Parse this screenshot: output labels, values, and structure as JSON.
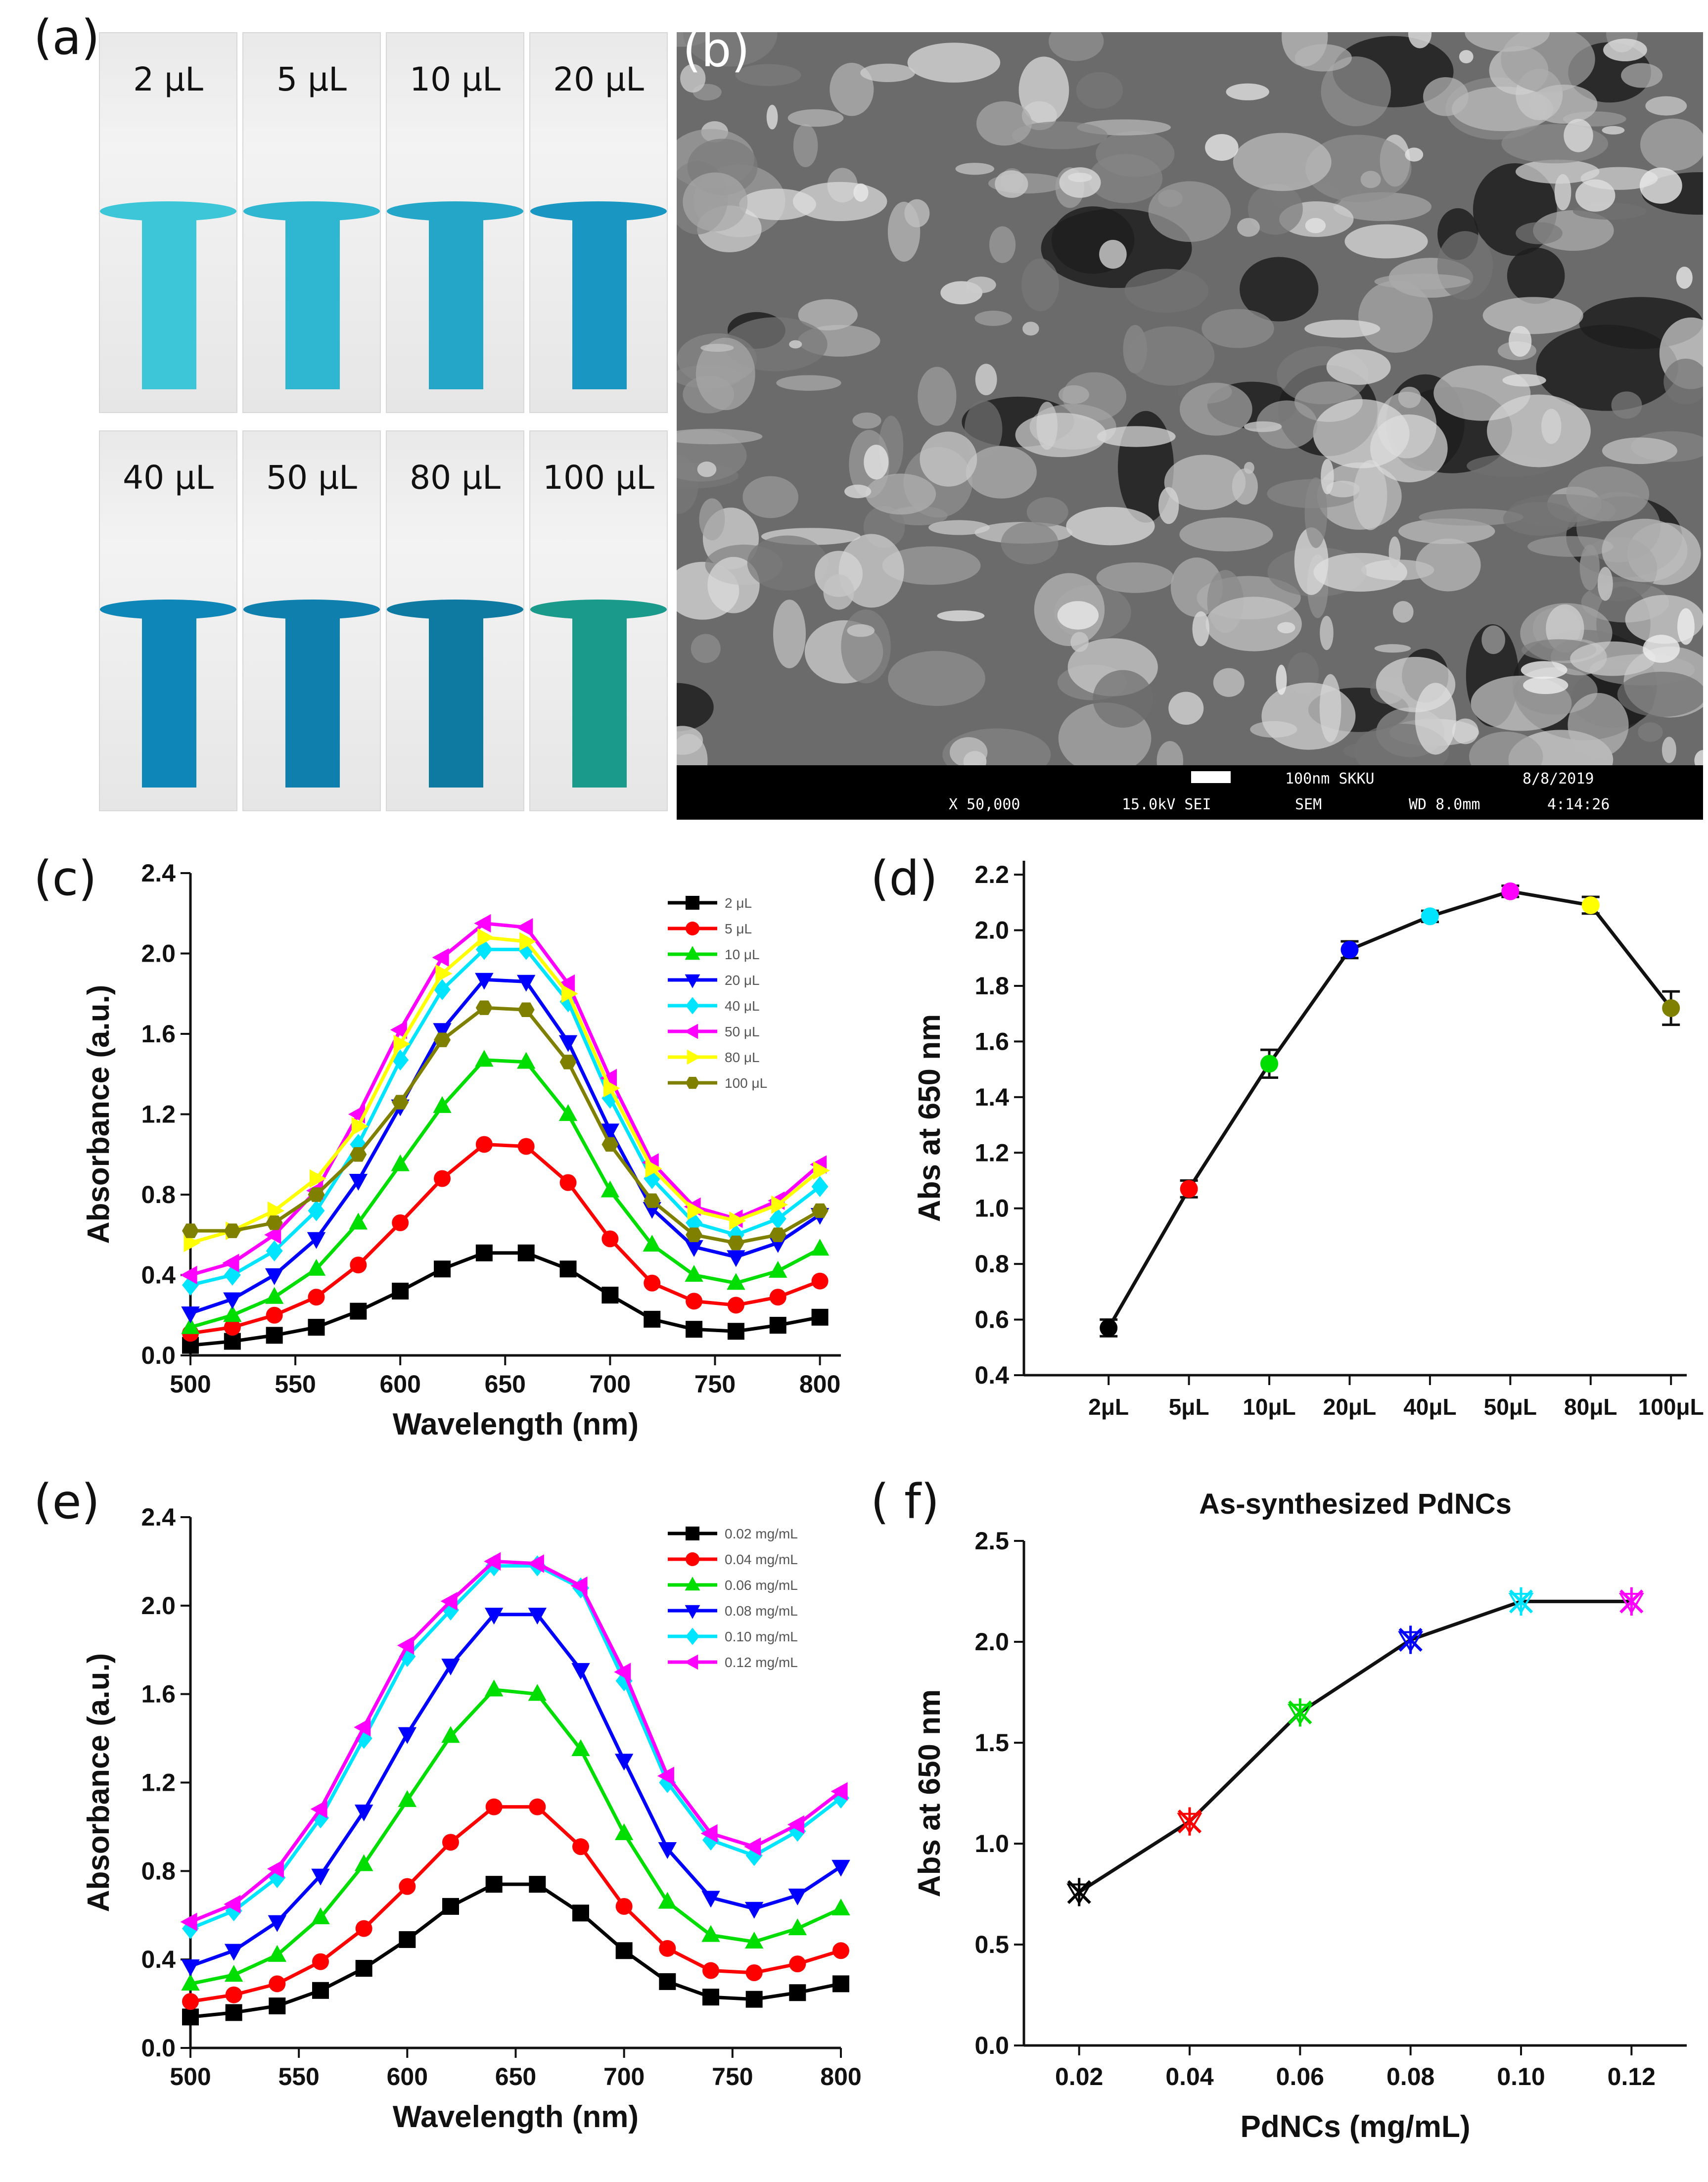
{
  "panels": {
    "a": "(a)",
    "b": "(b)",
    "c": "(c)",
    "d": "(d)",
    "e": "(e)",
    "f": "( f)"
  },
  "cuvettes": [
    {
      "label": "2 μL",
      "color": "#3cc6d8"
    },
    {
      "label": "5 μL",
      "color": "#2fb7d2"
    },
    {
      "label": "10 μL",
      "color": "#24a6c9"
    },
    {
      "label": "20 μL",
      "color": "#1997c2"
    },
    {
      "label": "40 μL",
      "color": "#0f86b8"
    },
    {
      "label": "50 μL",
      "color": "#0f7fae"
    },
    {
      "label": "80 μL",
      "color": "#0e7aa2"
    },
    {
      "label": "100 μL",
      "color": "#1a9a8a"
    }
  ],
  "sem_info": {
    "scale_label": "100nm SKKU",
    "date": "8/8/2019",
    "magnification": "X 50,000",
    "voltage": "15.0kV SEI",
    "mode": "SEM",
    "wd": "WD 8.0mm",
    "time": "4:14:26"
  },
  "chart_data": [
    {
      "id": "c",
      "type": "line",
      "xlabel": "Wavelength (nm)",
      "ylabel": "Absorbance (a.u.)",
      "xlim": [
        500,
        810
      ],
      "ylim": [
        0.0,
        2.4
      ],
      "xticks": [
        500,
        550,
        600,
        650,
        700,
        750,
        800
      ],
      "yticks": [
        0.0,
        0.4,
        0.8,
        1.2,
        1.6,
        2.0,
        2.4
      ],
      "legend": "top-right",
      "x": [
        500,
        520,
        540,
        560,
        580,
        600,
        620,
        640,
        660,
        680,
        700,
        720,
        740,
        760,
        780,
        800
      ],
      "series": [
        {
          "name": "2 μL",
          "color": "#000000",
          "marker": "square",
          "values": [
            0.05,
            0.07,
            0.1,
            0.14,
            0.22,
            0.32,
            0.43,
            0.51,
            0.51,
            0.43,
            0.3,
            0.18,
            0.13,
            0.12,
            0.15,
            0.19
          ]
        },
        {
          "name": "5 μL",
          "color": "#ff0000",
          "marker": "circle",
          "values": [
            0.11,
            0.14,
            0.2,
            0.29,
            0.45,
            0.66,
            0.88,
            1.05,
            1.04,
            0.86,
            0.58,
            0.36,
            0.27,
            0.25,
            0.29,
            0.37
          ]
        },
        {
          "name": "10 μL",
          "color": "#00dd00",
          "marker": "triangle",
          "values": [
            0.14,
            0.2,
            0.29,
            0.43,
            0.66,
            0.95,
            1.24,
            1.47,
            1.46,
            1.2,
            0.82,
            0.55,
            0.4,
            0.36,
            0.42,
            0.53
          ]
        },
        {
          "name": "20 μL",
          "color": "#0000ff",
          "marker": "triangle-down",
          "values": [
            0.21,
            0.28,
            0.4,
            0.58,
            0.87,
            1.24,
            1.62,
            1.87,
            1.86,
            1.56,
            1.12,
            0.73,
            0.54,
            0.49,
            0.56,
            0.7
          ]
        },
        {
          "name": "40 μL",
          "color": "#00e5ff",
          "marker": "diamond",
          "values": [
            0.35,
            0.4,
            0.52,
            0.72,
            1.05,
            1.47,
            1.82,
            2.02,
            2.02,
            1.76,
            1.28,
            0.88,
            0.66,
            0.6,
            0.68,
            0.84
          ]
        },
        {
          "name": "50 μL",
          "color": "#ff00ff",
          "marker": "triangle-left",
          "values": [
            0.4,
            0.46,
            0.6,
            0.82,
            1.2,
            1.62,
            1.98,
            2.15,
            2.13,
            1.85,
            1.38,
            0.96,
            0.74,
            0.68,
            0.77,
            0.95
          ]
        },
        {
          "name": "80 μL",
          "color": "#ffff00",
          "marker": "triangle-right",
          "values": [
            0.56,
            0.62,
            0.72,
            0.88,
            1.14,
            1.55,
            1.9,
            2.08,
            2.06,
            1.8,
            1.33,
            0.93,
            0.72,
            0.67,
            0.75,
            0.92
          ]
        },
        {
          "name": "100 μL",
          "color": "#808000",
          "marker": "hexagon",
          "values": [
            0.62,
            0.62,
            0.66,
            0.8,
            1.0,
            1.26,
            1.57,
            1.73,
            1.72,
            1.46,
            1.05,
            0.77,
            0.6,
            0.56,
            0.6,
            0.72
          ]
        }
      ]
    },
    {
      "id": "d",
      "type": "line",
      "xlabel": "",
      "ylabel": "Abs at 650 nm",
      "ylim": [
        0.4,
        2.25
      ],
      "yticks": [
        0.4,
        0.6,
        0.8,
        1.0,
        1.2,
        1.4,
        1.6,
        1.8,
        2.0,
        2.2
      ],
      "categories": [
        "2μL",
        "5μL",
        "10μL",
        "20μL",
        "40μL",
        "50μL",
        "80μL",
        "100μL"
      ],
      "values": [
        0.57,
        1.07,
        1.52,
        1.93,
        2.05,
        2.14,
        2.09,
        1.72
      ],
      "errors": [
        0.03,
        0.03,
        0.05,
        0.03,
        0.02,
        0.02,
        0.03,
        0.06
      ],
      "marker_colors": [
        "#000000",
        "#ff0000",
        "#00dd00",
        "#0000ff",
        "#00e5ff",
        "#ff00ff",
        "#ffff00",
        "#808000"
      ]
    },
    {
      "id": "e",
      "type": "line",
      "xlabel": "Wavelength (nm)",
      "ylabel": "Absorbance (a.u.)",
      "xlim": [
        500,
        800
      ],
      "ylim": [
        0.0,
        2.4
      ],
      "xticks": [
        500,
        550,
        600,
        650,
        700,
        750,
        800
      ],
      "yticks": [
        0.0,
        0.4,
        0.8,
        1.2,
        1.6,
        2.0,
        2.4
      ],
      "legend": "top-right",
      "x": [
        500,
        520,
        540,
        560,
        580,
        600,
        620,
        640,
        660,
        680,
        700,
        720,
        740,
        760,
        780,
        800
      ],
      "series": [
        {
          "name": "0.02 mg/mL",
          "color": "#000000",
          "marker": "square",
          "values": [
            0.14,
            0.16,
            0.19,
            0.26,
            0.36,
            0.49,
            0.64,
            0.74,
            0.74,
            0.61,
            0.44,
            0.3,
            0.23,
            0.22,
            0.25,
            0.29
          ]
        },
        {
          "name": "0.04 mg/mL",
          "color": "#ff0000",
          "marker": "circle",
          "values": [
            0.21,
            0.24,
            0.29,
            0.39,
            0.54,
            0.73,
            0.93,
            1.09,
            1.09,
            0.91,
            0.64,
            0.45,
            0.35,
            0.34,
            0.38,
            0.44
          ]
        },
        {
          "name": "0.06 mg/mL",
          "color": "#00dd00",
          "marker": "triangle",
          "values": [
            0.29,
            0.33,
            0.42,
            0.59,
            0.83,
            1.12,
            1.41,
            1.62,
            1.6,
            1.35,
            0.97,
            0.66,
            0.51,
            0.48,
            0.54,
            0.63
          ]
        },
        {
          "name": "0.08 mg/mL",
          "color": "#0000ff",
          "marker": "triangle-down",
          "values": [
            0.37,
            0.44,
            0.57,
            0.78,
            1.07,
            1.42,
            1.73,
            1.96,
            1.96,
            1.71,
            1.3,
            0.9,
            0.68,
            0.63,
            0.69,
            0.82
          ]
        },
        {
          "name": "0.10 mg/mL",
          "color": "#00e5ff",
          "marker": "diamond",
          "values": [
            0.54,
            0.62,
            0.77,
            1.04,
            1.4,
            1.77,
            1.98,
            2.18,
            2.18,
            2.08,
            1.66,
            1.2,
            0.94,
            0.87,
            0.98,
            1.13
          ]
        },
        {
          "name": "0.12 mg/mL",
          "color": "#ff00ff",
          "marker": "triangle-left",
          "values": [
            0.57,
            0.65,
            0.81,
            1.08,
            1.45,
            1.82,
            2.02,
            2.2,
            2.19,
            2.09,
            1.7,
            1.23,
            0.97,
            0.91,
            1.01,
            1.16
          ]
        }
      ]
    },
    {
      "id": "f",
      "type": "line",
      "title": "As-synthesized PdNCs",
      "xlabel": "PdNCs (mg/mL)",
      "ylabel": "Abs at 650 nm",
      "xlim": [
        0.01,
        0.13
      ],
      "ylim": [
        0.0,
        2.5
      ],
      "xticks": [
        "0.02",
        "0.04",
        "0.06",
        "0.08",
        "0.10",
        "0.12"
      ],
      "yticks": [
        "0.0",
        "0.5",
        "1.0",
        "1.5",
        "2.0",
        "2.5"
      ],
      "x": [
        0.02,
        0.04,
        0.06,
        0.08,
        0.1,
        0.12
      ],
      "values": [
        0.76,
        1.11,
        1.65,
        2.01,
        2.2,
        2.2
      ],
      "marker_colors": [
        "#000000",
        "#ff0000",
        "#00dd00",
        "#0000ff",
        "#00e5ff",
        "#ff00ff"
      ]
    }
  ]
}
